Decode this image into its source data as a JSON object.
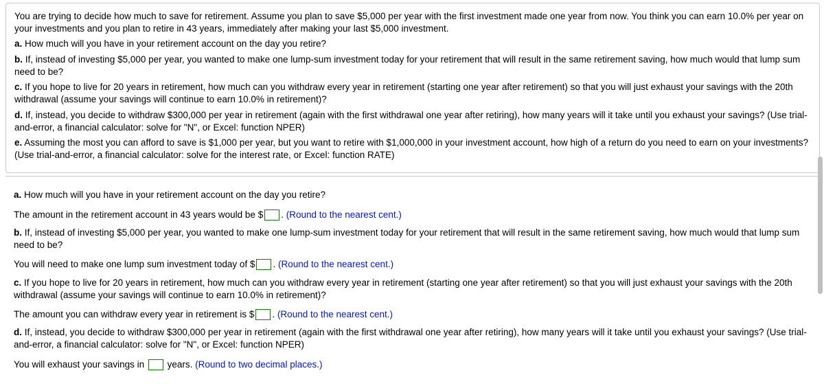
{
  "problem": {
    "intro": "You are trying to decide how much to save for retirement. Assume you plan to save $5,000 per year with the first investment made one year from now. You think you can earn 10.0% per year on your investments and you plan to retire in  43 years, immediately after making your last $5,000 investment.",
    "a_label": "a.",
    "a_text": " How much will you have in your retirement account on the day you retire?",
    "b_label": "b.",
    "b_text": " If, instead of investing $5,000 per year, you wanted to make one lump-sum investment today for your retirement that will result in the same retirement saving, how much would that lump sum need to be?",
    "c_label": "c.",
    "c_text": " If you hope to live for 20 years in retirement, how much can you withdraw every year in retirement (starting one year after retirement) so that you will just exhaust your savings with the 20th withdrawal (assume your savings will continue to earn 10.0% in retirement)?",
    "d_label": "d.",
    "d_text": " If, instead, you decide to withdraw $300,000 per year in retirement (again with the first withdrawal one year after retiring), how many years will it take until you exhaust your savings? (Use trial-and-error, a financial calculator: solve for \"N\", or Excel: function NPER)",
    "e_label": "e.",
    "e_text": " Assuming the most you can afford to save is $1,000 per year, but you want to retire with $1,000,000 in your investment account, how high of a return do you need to earn on your investments? (Use trial-and-error, a financial calculator: solve for the interest rate, or Excel: function RATE)"
  },
  "answers": {
    "a_q_label": "a.",
    "a_q_text": " How much will you have in your retirement account on the day you retire?",
    "a_pre": "The amount in the retirement account in 43 years would be $",
    "a_post": ".  ",
    "a_hint": "(Round to the nearest cent.)",
    "b_q_label": "b.",
    "b_q_text": " If, instead of investing $5,000 per year, you wanted to make one lump-sum investment today for your retirement that will result in the same retirement saving, how much would that lump sum need to be?",
    "b_pre": "You will need to make one lump sum investment today of $",
    "b_post": ".  ",
    "b_hint": "(Round to the nearest cent.)",
    "c_q_label": "c.",
    "c_q_text": " If you hope to live for 20 years in retirement, how much can you withdraw every year in retirement (starting one year after retirement) so that you will just exhaust your savings with the 20th withdrawal (assume your savings will continue to earn 10.0% in retirement)?",
    "c_pre": "The amount you can withdraw every year in retirement is $",
    "c_post": ".  ",
    "c_hint": "(Round to the nearest cent.)",
    "d_q_label": "d.",
    "d_q_text": " If, instead, you decide to withdraw $300,000 per year in retirement (again with the first withdrawal one year after retiring), how many years will it take until you exhaust your savings? (Use trial-and-error, a financial calculator: solve for \"N\", or Excel: function NPER)",
    "d_pre": "You will exhaust your savings in ",
    "d_post": " years.  ",
    "d_hint": "(Round to two decimal places.)"
  },
  "colors": {
    "hint": "#0018d6",
    "input_border": "#0a7f00",
    "box_border": "#c9c9c9",
    "scrollbar": "#bfbfbf"
  }
}
